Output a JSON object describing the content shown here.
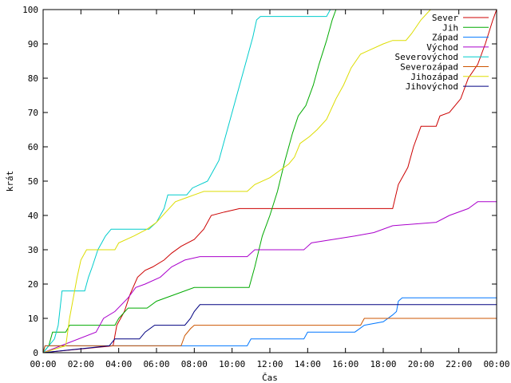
{
  "chart_data": {
    "type": "line",
    "xlabel": "Čas",
    "ylabel": "krát",
    "x_ticks": [
      "00:00",
      "02:00",
      "04:00",
      "06:00",
      "08:00",
      "10:00",
      "12:00",
      "14:00",
      "16:00",
      "18:00",
      "20:00",
      "22:00",
      "00:00"
    ],
    "y_ticks": [
      0,
      10,
      20,
      30,
      40,
      50,
      60,
      70,
      80,
      90,
      100
    ],
    "xlim": [
      0,
      24
    ],
    "ylim": [
      0,
      100
    ],
    "legend_position": "top-right",
    "series": [
      {
        "name": "Sever",
        "color": "#cc0000",
        "points": [
          [
            0,
            0
          ],
          [
            3.7,
            2
          ],
          [
            3.9,
            8
          ],
          [
            4.3,
            12
          ],
          [
            4.6,
            17
          ],
          [
            5.0,
            22
          ],
          [
            5.4,
            24
          ],
          [
            5.8,
            25
          ],
          [
            6.4,
            27
          ],
          [
            6.8,
            29
          ],
          [
            7.3,
            31
          ],
          [
            8.0,
            33
          ],
          [
            8.5,
            36
          ],
          [
            8.9,
            40
          ],
          [
            9.6,
            41
          ],
          [
            10.4,
            42
          ],
          [
            18.5,
            42
          ],
          [
            18.8,
            49
          ],
          [
            19.3,
            54
          ],
          [
            19.6,
            60
          ],
          [
            20.0,
            66
          ],
          [
            20.8,
            66
          ],
          [
            21.0,
            69
          ],
          [
            21.5,
            70
          ],
          [
            22.1,
            74
          ],
          [
            22.5,
            80
          ],
          [
            23.0,
            84
          ],
          [
            23.4,
            90
          ],
          [
            23.8,
            97
          ],
          [
            24,
            100
          ]
        ]
      },
      {
        "name": "Jih",
        "color": "#00aa00",
        "points": [
          [
            0,
            0
          ],
          [
            0.3,
            2
          ],
          [
            0.5,
            6
          ],
          [
            1.2,
            6
          ],
          [
            1.4,
            8
          ],
          [
            3.8,
            8
          ],
          [
            4.0,
            10
          ],
          [
            4.5,
            13
          ],
          [
            5.5,
            13
          ],
          [
            6.0,
            15
          ],
          [
            7.0,
            17
          ],
          [
            8.0,
            19
          ],
          [
            10.9,
            19
          ],
          [
            11.2,
            25
          ],
          [
            11.6,
            34
          ],
          [
            12.0,
            40
          ],
          [
            12.4,
            47
          ],
          [
            12.8,
            56
          ],
          [
            13.2,
            64
          ],
          [
            13.5,
            69
          ],
          [
            13.9,
            72
          ],
          [
            14.3,
            78
          ],
          [
            14.6,
            84
          ],
          [
            15.0,
            91
          ],
          [
            15.3,
            97
          ],
          [
            15.5,
            100
          ]
        ]
      },
      {
        "name": "Západ",
        "color": "#0077ff",
        "points": [
          [
            0,
            0
          ],
          [
            0.1,
            2
          ],
          [
            6.8,
            2
          ],
          [
            7.0,
            2
          ],
          [
            10.8,
            2
          ],
          [
            11.0,
            4
          ],
          [
            13.8,
            4
          ],
          [
            14.0,
            6
          ],
          [
            16.5,
            6
          ],
          [
            17.0,
            8
          ],
          [
            18.0,
            9
          ],
          [
            18.5,
            11
          ],
          [
            18.7,
            12
          ],
          [
            18.8,
            15
          ],
          [
            19.0,
            16
          ],
          [
            24,
            16
          ]
        ]
      },
      {
        "name": "Východ",
        "color": "#aa00cc",
        "points": [
          [
            0,
            0
          ],
          [
            2.8,
            6
          ],
          [
            3.2,
            10
          ],
          [
            3.8,
            12
          ],
          [
            4.5,
            16
          ],
          [
            4.9,
            19
          ],
          [
            5.4,
            20
          ],
          [
            6.2,
            22
          ],
          [
            6.8,
            25
          ],
          [
            7.5,
            27
          ],
          [
            8.3,
            28
          ],
          [
            10.8,
            28
          ],
          [
            11.2,
            30
          ],
          [
            13.8,
            30
          ],
          [
            14.2,
            32
          ],
          [
            16.5,
            34
          ],
          [
            17.5,
            35
          ],
          [
            18.5,
            37
          ],
          [
            20.8,
            38
          ],
          [
            21.5,
            40
          ],
          [
            22.5,
            42
          ],
          [
            23.0,
            44
          ],
          [
            24,
            44
          ]
        ]
      },
      {
        "name": "Severovýchod",
        "color": "#00cccc",
        "points": [
          [
            0,
            0
          ],
          [
            0.3,
            2
          ],
          [
            0.6,
            4
          ],
          [
            0.8,
            8
          ],
          [
            1.0,
            18
          ],
          [
            2.2,
            18
          ],
          [
            2.4,
            22
          ],
          [
            2.6,
            25
          ],
          [
            2.9,
            30
          ],
          [
            3.3,
            34
          ],
          [
            3.6,
            36
          ],
          [
            5.6,
            36
          ],
          [
            6.0,
            38
          ],
          [
            6.4,
            42
          ],
          [
            6.6,
            46
          ],
          [
            7.6,
            46
          ],
          [
            7.9,
            48
          ],
          [
            8.3,
            49
          ],
          [
            8.7,
            50
          ],
          [
            9.0,
            53
          ],
          [
            9.3,
            56
          ],
          [
            9.6,
            62
          ],
          [
            9.9,
            68
          ],
          [
            10.2,
            74
          ],
          [
            10.5,
            80
          ],
          [
            10.8,
            86
          ],
          [
            11.1,
            92
          ],
          [
            11.3,
            97
          ],
          [
            11.5,
            98
          ],
          [
            15.0,
            98
          ],
          [
            15.2,
            100
          ]
        ]
      },
      {
        "name": "Severozápad",
        "color": "#cc5500",
        "points": [
          [
            0,
            0
          ],
          [
            0.1,
            2
          ],
          [
            7.3,
            2
          ],
          [
            7.5,
            5
          ],
          [
            7.8,
            7
          ],
          [
            8.0,
            8
          ],
          [
            16.8,
            8
          ],
          [
            17.0,
            10
          ],
          [
            24,
            10
          ]
        ]
      },
      {
        "name": "Jihozápad",
        "color": "#dddd00",
        "points": [
          [
            0,
            0
          ],
          [
            1.2,
            2
          ],
          [
            1.4,
            10
          ],
          [
            1.8,
            22
          ],
          [
            2.0,
            27
          ],
          [
            2.3,
            30
          ],
          [
            3.8,
            30
          ],
          [
            4.0,
            32
          ],
          [
            4.8,
            34
          ],
          [
            5.5,
            36
          ],
          [
            6.0,
            38
          ],
          [
            6.5,
            41
          ],
          [
            7.0,
            44
          ],
          [
            7.5,
            45
          ],
          [
            8.0,
            46
          ],
          [
            8.5,
            47
          ],
          [
            10.8,
            47
          ],
          [
            11.2,
            49
          ],
          [
            12.0,
            51
          ],
          [
            12.5,
            53
          ],
          [
            13.0,
            55
          ],
          [
            13.3,
            57
          ],
          [
            13.6,
            61
          ],
          [
            14.1,
            63
          ],
          [
            14.5,
            65
          ],
          [
            15.0,
            68
          ],
          [
            15.5,
            74
          ],
          [
            15.9,
            78
          ],
          [
            16.3,
            83
          ],
          [
            16.8,
            87
          ],
          [
            17.2,
            88
          ],
          [
            18.0,
            90
          ],
          [
            18.5,
            91
          ],
          [
            19.2,
            91
          ],
          [
            19.5,
            93
          ],
          [
            20.0,
            97
          ],
          [
            20.5,
            100
          ]
        ]
      },
      {
        "name": "Jihovýchod",
        "color": "#000080",
        "points": [
          [
            0,
            0
          ],
          [
            3.5,
            2
          ],
          [
            3.8,
            4
          ],
          [
            5.1,
            4
          ],
          [
            5.4,
            6
          ],
          [
            5.9,
            8
          ],
          [
            7.5,
            8
          ],
          [
            7.8,
            10
          ],
          [
            8.0,
            12
          ],
          [
            8.3,
            14
          ],
          [
            24,
            14
          ]
        ]
      }
    ]
  }
}
